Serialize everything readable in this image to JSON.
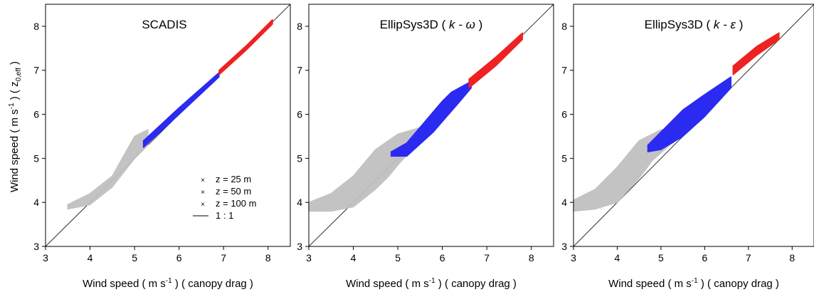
{
  "figure": {
    "ylabel_main": "Wind speed ( m s",
    "ylabel_sup": "-1",
    "ylabel_end": " ) ( z",
    "ylabel_sub": "0,eff",
    "ylabel_close": " )",
    "xlabel_main": "Wind speed ( m s",
    "xlabel_sup": "-1",
    "xlabel_end": " ) ( canopy drag )"
  },
  "legend": {
    "items": [
      {
        "label": "z = 25 m",
        "color": "#c0c0c0",
        "marker": "x"
      },
      {
        "label": "z = 50 m",
        "color": "#2a2af0",
        "marker": "x"
      },
      {
        "label": "z = 100 m",
        "color": "#ee2222",
        "marker": "x"
      },
      {
        "label": "1 : 1",
        "color": "#000000",
        "marker": "line"
      }
    ]
  },
  "chart_data": [
    {
      "type": "scatter",
      "title_parts": [
        {
          "text": "SCADIS",
          "italic": false
        }
      ],
      "xlim": [
        3,
        8.5
      ],
      "ylim": [
        3,
        8.5
      ],
      "xticks": [
        3,
        4,
        5,
        6,
        7,
        8
      ],
      "yticks": [
        3,
        4,
        5,
        6,
        7,
        8
      ],
      "series": [
        {
          "name": "z = 25 m",
          "color": "#c0c0c0",
          "upper": [
            [
              3.5,
              3.95
            ],
            [
              4.0,
              4.2
            ],
            [
              4.5,
              4.6
            ],
            [
              5.0,
              5.5
            ],
            [
              5.3,
              5.65
            ]
          ],
          "lower": [
            [
              3.5,
              3.85
            ],
            [
              4.0,
              3.95
            ],
            [
              4.5,
              4.35
            ],
            [
              5.0,
              5.0
            ],
            [
              5.3,
              5.3
            ]
          ]
        },
        {
          "name": "z = 50 m",
          "color": "#2a2af0",
          "upper": [
            [
              5.2,
              5.4
            ],
            [
              6.0,
              6.15
            ],
            [
              6.9,
              6.95
            ]
          ],
          "lower": [
            [
              5.2,
              5.25
            ],
            [
              6.0,
              6.0
            ],
            [
              6.9,
              6.85
            ]
          ]
        },
        {
          "name": "z = 100 m",
          "color": "#ee2222",
          "upper": [
            [
              6.9,
              7.0
            ],
            [
              7.5,
              7.55
            ],
            [
              8.1,
              8.15
            ]
          ],
          "lower": [
            [
              6.9,
              6.9
            ],
            [
              7.5,
              7.45
            ],
            [
              8.1,
              8.05
            ]
          ]
        }
      ]
    },
    {
      "type": "scatter",
      "title_parts": [
        {
          "text": "EllipSys3D ( ",
          "italic": false
        },
        {
          "text": "k - ω",
          "italic": true
        },
        {
          "text": " )",
          "italic": false
        }
      ],
      "xlim": [
        3,
        8.5
      ],
      "ylim": [
        3,
        8.5
      ],
      "xticks": [
        3,
        4,
        5,
        6,
        7,
        8
      ],
      "yticks": [
        3,
        4,
        5,
        6,
        7,
        8
      ],
      "series": [
        {
          "name": "z = 25 m",
          "color": "#c0c0c0",
          "upper": [
            [
              3.0,
              4.0
            ],
            [
              3.5,
              4.2
            ],
            [
              4.0,
              4.6
            ],
            [
              4.5,
              5.2
            ],
            [
              5.0,
              5.55
            ],
            [
              5.5,
              5.7
            ],
            [
              5.8,
              5.75
            ]
          ],
          "lower": [
            [
              3.0,
              3.8
            ],
            [
              3.5,
              3.8
            ],
            [
              4.0,
              3.9
            ],
            [
              4.5,
              4.3
            ],
            [
              4.8,
              4.6
            ],
            [
              5.0,
              4.85
            ],
            [
              5.5,
              5.4
            ],
            [
              5.8,
              5.75
            ]
          ]
        },
        {
          "name": "z = 50 m",
          "color": "#2a2af0",
          "upper": [
            [
              4.85,
              5.15
            ],
            [
              5.2,
              5.35
            ],
            [
              6.0,
              6.3
            ],
            [
              6.2,
              6.5
            ],
            [
              6.65,
              6.75
            ]
          ],
          "lower": [
            [
              4.85,
              5.05
            ],
            [
              5.2,
              5.05
            ],
            [
              5.8,
              5.6
            ],
            [
              6.4,
              6.3
            ],
            [
              6.65,
              6.6
            ]
          ]
        },
        {
          "name": "z = 100 m",
          "color": "#ee2222",
          "upper": [
            [
              6.6,
              6.8
            ],
            [
              7.2,
              7.3
            ],
            [
              7.8,
              7.85
            ]
          ],
          "lower": [
            [
              6.6,
              6.6
            ],
            [
              7.2,
              7.1
            ],
            [
              7.8,
              7.7
            ]
          ]
        }
      ]
    },
    {
      "type": "scatter",
      "title_parts": [
        {
          "text": "EllipSys3D ( ",
          "italic": false
        },
        {
          "text": "k - ε",
          "italic": true
        },
        {
          "text": " )",
          "italic": false
        }
      ],
      "xlim": [
        3,
        8.5
      ],
      "ylim": [
        3,
        8.5
      ],
      "xticks": [
        3,
        4,
        5,
        6,
        7,
        8
      ],
      "yticks": [
        3,
        4,
        5,
        6,
        7,
        8
      ],
      "series": [
        {
          "name": "z = 25 m",
          "color": "#c0c0c0",
          "upper": [
            [
              3.0,
              4.05
            ],
            [
              3.5,
              4.3
            ],
            [
              4.0,
              4.8
            ],
            [
              4.5,
              5.4
            ],
            [
              5.0,
              5.65
            ],
            [
              5.6,
              5.75
            ]
          ],
          "lower": [
            [
              3.0,
              3.8
            ],
            [
              3.5,
              3.85
            ],
            [
              4.0,
              4.0
            ],
            [
              4.5,
              4.55
            ],
            [
              4.8,
              4.95
            ],
            [
              5.2,
              5.3
            ],
            [
              5.6,
              5.6
            ]
          ]
        },
        {
          "name": "z = 50 m",
          "color": "#2a2af0",
          "upper": [
            [
              4.7,
              5.3
            ],
            [
              5.0,
              5.6
            ],
            [
              5.5,
              6.1
            ],
            [
              6.0,
              6.45
            ],
            [
              6.6,
              6.85
            ]
          ],
          "lower": [
            [
              4.7,
              5.15
            ],
            [
              5.0,
              5.2
            ],
            [
              5.5,
              5.5
            ],
            [
              6.0,
              5.95
            ],
            [
              6.6,
              6.6
            ]
          ]
        },
        {
          "name": "z = 100 m",
          "color": "#ee2222",
          "upper": [
            [
              6.65,
              7.1
            ],
            [
              7.2,
              7.55
            ],
            [
              7.7,
              7.85
            ]
          ],
          "lower": [
            [
              6.65,
              6.9
            ],
            [
              7.2,
              7.35
            ],
            [
              7.7,
              7.7
            ]
          ]
        }
      ]
    }
  ]
}
